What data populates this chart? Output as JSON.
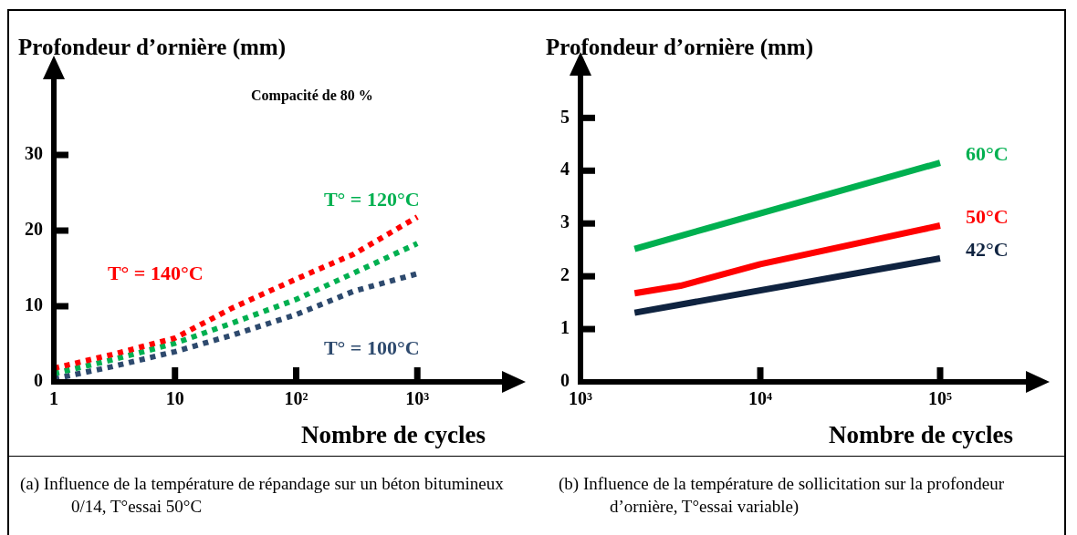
{
  "chart_data": [
    {
      "type": "line",
      "ylabel": "Profondeur d’ornière (mm)",
      "xlabel": "Nombre de cycles",
      "log": "x",
      "line_style": "dotted",
      "marker": "none",
      "legend": false,
      "grid": false,
      "xlim": [
        1,
        5000
      ],
      "xticks": [
        1,
        10,
        {
          "value": 100,
          "label": "10²"
        },
        {
          "value": 1000,
          "label": "10³"
        }
      ],
      "ylim": [
        0,
        40
      ],
      "yticks": [
        0,
        10,
        20,
        30
      ],
      "x": [
        1,
        3,
        10,
        30,
        100,
        300,
        1000
      ],
      "series": [
        {
          "name": "T° = 140°C",
          "color": "#ff0000",
          "values": [
            1.8,
            3.6,
            5.8,
            9.8,
            13.6,
            16.9,
            21.8
          ]
        },
        {
          "name": "T° = 120°C",
          "color": "#00b050",
          "values": [
            1.1,
            2.9,
            5.1,
            7.8,
            10.9,
            14.4,
            18.3
          ]
        },
        {
          "name": "T° = 100°C",
          "color": "#2e4a6e",
          "values": [
            0.4,
            2.0,
            4.0,
            6.2,
            8.9,
            12.0,
            14.3
          ]
        }
      ],
      "annotations": [
        "Compacité de 80 %",
        "(a) Influence de la température de répandage sur un béton bitumineux 0/14, T°essai 50°C"
      ]
    },
    {
      "type": "line",
      "ylabel": "Profondeur d’ornière (mm)",
      "xlabel": "Nombre de cycles",
      "log": "x",
      "line_style": "solid",
      "marker": "none",
      "legend": false,
      "grid": false,
      "xlim": [
        1000,
        300000
      ],
      "xticks": [
        {
          "value": 1000,
          "label": "10³"
        },
        {
          "value": 10000,
          "label": "10⁴"
        },
        {
          "value": 100000,
          "label": "10⁵"
        }
      ],
      "ylim": [
        0,
        5.8
      ],
      "yticks": [
        0,
        1,
        2,
        3,
        4,
        5
      ],
      "series": [
        {
          "name": "60°C",
          "color": "#00b050",
          "x": [
            2000,
            100000
          ],
          "values": [
            2.52,
            4.15
          ]
        },
        {
          "name": "50°C",
          "color": "#ff0000",
          "x": [
            2000,
            3600,
            10000,
            100000
          ],
          "values": [
            1.68,
            1.82,
            2.23,
            2.96
          ]
        },
        {
          "name": "42°C",
          "color": "#0f2340",
          "x": [
            2000,
            100000
          ],
          "values": [
            1.31,
            2.34
          ]
        }
      ],
      "annotations": [
        "(b) Influence de la température de sollicitation sur la profondeur d’ornière, T°essai variable)"
      ]
    }
  ]
}
